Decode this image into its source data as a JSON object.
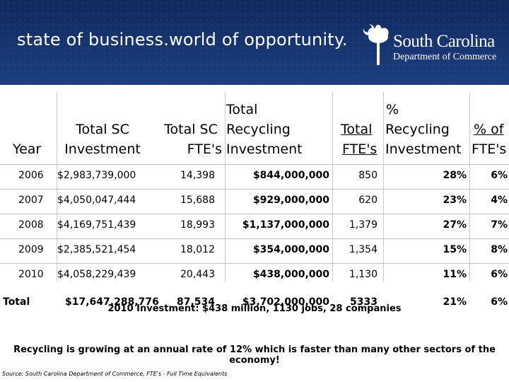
{
  "header": {
    "tagline": "state of business.world of opportunity.",
    "logo_main": "South Carolina",
    "logo_sub": "Department of Commerce",
    "logo_icon": "palmetto-tree-icon"
  },
  "table": {
    "col_year": "Year",
    "col_total_sc_investment": [
      "Total SC",
      "Investment"
    ],
    "col_total_sc_fte": [
      "Total SC",
      "FTE's"
    ],
    "col_total_recycling_investment": [
      "Total",
      "Recycling",
      "Investment"
    ],
    "col_total_fte": [
      "Total",
      "FTE's"
    ],
    "col_pct_recycling_investment": [
      "%",
      "Recycling",
      "Investment"
    ],
    "col_pct_fte": [
      "% of",
      "FTE's"
    ],
    "rows": [
      {
        "year": "2006",
        "sc_investment": "$2,983,739,000",
        "sc_fte": "14,398",
        "rec_investment": "$844,000,000",
        "rec_fte": "850",
        "pct_inv": "28%",
        "pct_fte": "6%"
      },
      {
        "year": "2007",
        "sc_investment": "$4,050,047,444",
        "sc_fte": "15,688",
        "rec_investment": "$929,000,000",
        "rec_fte": "620",
        "pct_inv": "23%",
        "pct_fte": "4%"
      },
      {
        "year": "2008",
        "sc_investment": "$4,169,751,439",
        "sc_fte": "18,993",
        "rec_investment": "$1,137,000,000",
        "rec_fte": "1,379",
        "pct_inv": "27%",
        "pct_fte": "7%"
      },
      {
        "year": "2009",
        "sc_investment": "$2,385,521,454",
        "sc_fte": "18,012",
        "rec_investment": "$354,000,000",
        "rec_fte": "1,354",
        "pct_inv": "15%",
        "pct_fte": "8%"
      },
      {
        "year": "2010",
        "sc_investment": "$4,058,229,439",
        "sc_fte": "20,443",
        "rec_investment": "$438,000,000",
        "rec_fte": "1,130",
        "pct_inv": "11%",
        "pct_fte": "6%"
      }
    ],
    "total": {
      "year": "Total",
      "sc_investment": "$17,647,288,776",
      "sc_fte": "87,534",
      "rec_investment": "$3,702,000,000",
      "rec_fte": "5333",
      "pct_inv": "21%",
      "pct_fte": "6%"
    }
  },
  "notes": {
    "investment_2010": "2010 Investment: $438 million, 1130 jobs, 28 companies",
    "growth": "Recycling is growing at an annual rate of 12% which is faster than many other sectors of the economy!",
    "source": "Source: South Carolina Department of Commerce, FTE's - Full Time Equivalents"
  },
  "colors": {
    "banner": "#173571",
    "text": "#000000"
  }
}
